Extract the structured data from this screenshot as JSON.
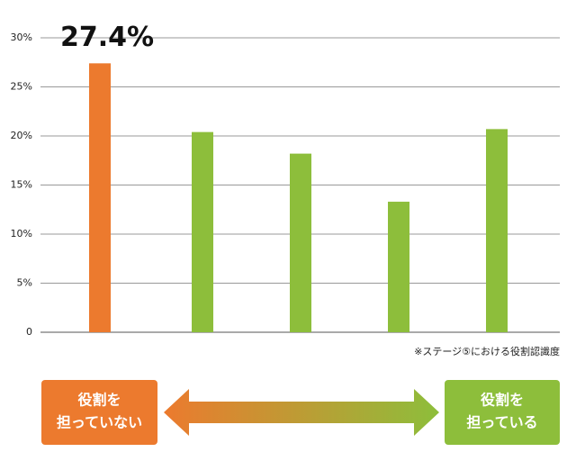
{
  "chart_data": {
    "type": "bar",
    "categories": [
      null,
      null,
      null,
      null,
      null
    ],
    "values": [
      27.4,
      20.4,
      18.2,
      13.3,
      20.7
    ],
    "value_labels": [
      "27.4%",
      null,
      null,
      null,
      null
    ],
    "colors": [
      "#ec7a2e",
      "#8dbe3b",
      "#8dbe3b",
      "#8dbe3b",
      "#8dbe3b"
    ],
    "ylim": [
      0,
      30
    ],
    "yticks": [
      0,
      {
        "value": 5,
        "label": "5%"
      },
      {
        "value": 10,
        "label": "10%"
      },
      {
        "value": 15,
        "label": "15%"
      },
      {
        "value": 20,
        "label": "20%"
      },
      {
        "value": 25,
        "label": "25%"
      },
      {
        "value": 30,
        "label": "30%"
      }
    ],
    "grid": true,
    "note": "※ステージ⑤における役割認識度"
  },
  "legend_boxes": {
    "left": {
      "lines": [
        "役割を",
        "担っていない"
      ],
      "color": "#ec7a2e"
    },
    "right": {
      "lines": [
        "役割を",
        "担っている"
      ],
      "color": "#8dbe3b"
    }
  }
}
